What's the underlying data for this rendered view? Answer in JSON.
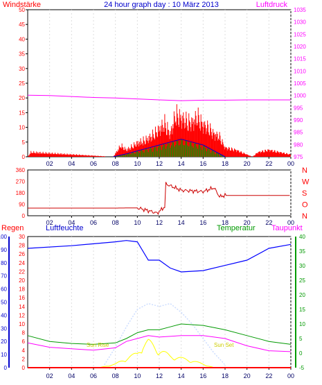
{
  "title": "24 hour graph day : 10 März 2013",
  "colors": {
    "wind": "#ff0000",
    "pressure": "#ff00ff",
    "humidity": "#0000ff",
    "temperature": "#009900",
    "dewpoint": "#ff00ff",
    "rain": "#ff0000",
    "sun": "#ffff00",
    "solar": "#ccddff",
    "gust_avg": "#0000cc",
    "title": "#0000cc"
  },
  "x_ticks": [
    "02",
    "04",
    "06",
    "08",
    "10",
    "12",
    "14",
    "16",
    "18",
    "20",
    "22",
    "00"
  ],
  "chart_data": [
    {
      "type": "bar",
      "name": "wind_pressure",
      "title": "24 hour graph day : 10 März 2013",
      "left_label": "Windstärke",
      "right_label": "Luftdruck",
      "left_ticks": [
        "50",
        "45",
        "40",
        "35",
        "30",
        "25",
        "20",
        "15",
        "10",
        "5",
        "0"
      ],
      "right_ticks": [
        "1035",
        "1030",
        "1025",
        "1020",
        "1015",
        "1010",
        "1005",
        "1000",
        "995",
        "990",
        "985",
        "980",
        "975"
      ],
      "ylim_left": [
        0,
        50
      ],
      "ylim_right": [
        975,
        1035
      ],
      "pressure": {
        "x": [
          0,
          2,
          4,
          6,
          8,
          10,
          12,
          14,
          16,
          18,
          20,
          22,
          24
        ],
        "y": [
          1000.1,
          1000.0,
          999.6,
          999.2,
          999.0,
          998.6,
          998.2,
          997.9,
          998.1,
          998.1,
          998.2,
          998.2,
          998.2
        ]
      },
      "wind_gusts": {
        "x": [
          0,
          0.3,
          7.8,
          8.5,
          9,
          10,
          11,
          12,
          12.5,
          13,
          13.5,
          14,
          14.5,
          15,
          15.5,
          16,
          16.5,
          17,
          17.5,
          18,
          19,
          20.5,
          21,
          22,
          23,
          24
        ],
        "y": [
          0,
          2,
          0,
          5,
          3,
          6,
          8,
          12,
          15,
          10,
          19,
          17,
          16,
          15,
          18,
          14,
          13,
          10,
          9,
          4,
          3,
          0,
          2,
          3,
          2,
          1
        ]
      },
      "wind_avg": {
        "x": [
          7.8,
          9,
          10,
          11,
          12,
          13,
          14,
          15,
          16,
          17,
          18
        ],
        "y": [
          0,
          1,
          2,
          3,
          4,
          5,
          6,
          5,
          4,
          2,
          0
        ]
      }
    },
    {
      "type": "line",
      "name": "wind_direction",
      "left_ticks": [
        "360",
        "270",
        "180",
        "90",
        "0"
      ],
      "right_labels": [
        "N",
        "W",
        "S",
        "O",
        "N"
      ],
      "ylim": [
        0,
        360
      ],
      "x": [
        0,
        8,
        10,
        11,
        11.8,
        12.5,
        12.6,
        14,
        16,
        17,
        17.5,
        18,
        20,
        24
      ],
      "y": [
        60,
        60,
        62,
        40,
        20,
        70,
        250,
        200,
        190,
        220,
        150,
        160,
        160,
        160
      ]
    },
    {
      "type": "line",
      "name": "temperature_humidity",
      "labels": {
        "rain": "Regen",
        "humidity": "Luftfeuchte",
        "temperature": "Temperatur",
        "dewpoint": "Taupunkt"
      },
      "humidity_ticks": [
        "100",
        "90",
        "80",
        "70",
        "60",
        "50",
        "40",
        "30",
        "20",
        "10",
        "0"
      ],
      "rain_ticks": [
        "30",
        "28",
        "26",
        "24",
        "22",
        "20",
        "18",
        "16",
        "14",
        "12",
        "10",
        "8",
        "6",
        "4",
        "2",
        "0"
      ],
      "temp_ticks": [
        "40",
        "35",
        "30",
        "25",
        "20",
        "15",
        "10",
        "5",
        "0",
        "-5"
      ],
      "ylim_humidity": [
        0,
        100
      ],
      "ylim_rain": [
        0,
        30
      ],
      "ylim_temp": [
        -5,
        40
      ],
      "humidity": {
        "x": [
          0,
          4,
          8,
          9,
          10,
          11,
          12,
          13,
          14,
          16,
          18,
          20,
          22,
          24
        ],
        "y": [
          91,
          93,
          96,
          97,
          96,
          82,
          82,
          76,
          73,
          74,
          78,
          82,
          91,
          94
        ]
      },
      "temperature": {
        "x": [
          0,
          2,
          4,
          6,
          8,
          9,
          10,
          11,
          12,
          13,
          14,
          16,
          18,
          20,
          22,
          24
        ],
        "y": [
          6.0,
          4.0,
          3.3,
          3.0,
          3.5,
          5.0,
          7.0,
          8.0,
          8.0,
          9.0,
          10.0,
          9.5,
          8.0,
          6.0,
          4.0,
          3.0
        ]
      },
      "dewpoint": {
        "x": [
          0,
          2,
          4,
          6,
          8,
          9,
          10,
          11,
          12,
          14,
          16,
          18,
          20,
          22,
          24
        ],
        "y": [
          3.5,
          2.0,
          1.5,
          1.0,
          1.8,
          4.0,
          5.0,
          6.0,
          5.5,
          6.0,
          6.0,
          5.0,
          2.5,
          0.8,
          0.5
        ]
      },
      "solar": {
        "x": [
          7,
          8,
          9,
          10,
          11,
          12,
          13,
          14,
          15,
          16,
          17,
          18
        ],
        "y": [
          -4,
          2,
          9,
          15,
          17,
          16,
          17,
          14,
          10,
          5,
          0,
          -4
        ]
      },
      "sun": {
        "x": [
          6.5,
          8,
          9,
          10,
          10.5,
          11,
          12,
          13,
          14,
          15,
          16,
          17
        ],
        "y": [
          0,
          3,
          8,
          12,
          20,
          22,
          15,
          10,
          8,
          6,
          3,
          0
        ]
      },
      "rain": {
        "x": [
          0,
          24
        ],
        "y": [
          0,
          0
        ]
      },
      "sun_rise_label": "Sun Rise",
      "sun_set_label": "Sun Set",
      "sun_rise_hour": 6.5,
      "sun_set_hour": 18
    }
  ]
}
